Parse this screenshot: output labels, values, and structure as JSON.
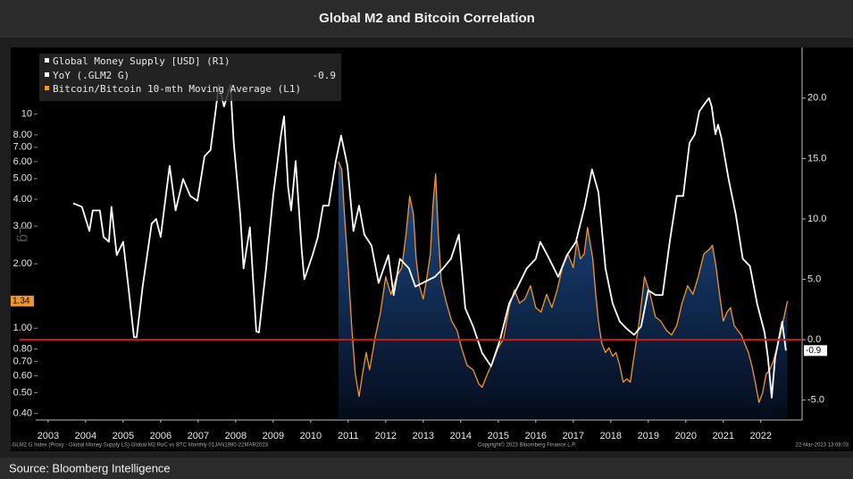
{
  "chart_data": {
    "type": "line",
    "title": "Global M2 and Bitcoin Correlation",
    "y_axis_label": "Lg",
    "xlim": [
      2003.17,
      2023.6
    ],
    "xticks": [
      {
        "value": 2003.5,
        "label": "2003"
      },
      {
        "value": 2004.5,
        "label": "2004"
      },
      {
        "value": 2005.5,
        "label": "2005"
      },
      {
        "value": 2006.5,
        "label": "2006"
      },
      {
        "value": 2007.5,
        "label": "2007"
      },
      {
        "value": 2008.5,
        "label": "2008"
      },
      {
        "value": 2009.5,
        "label": "2009"
      },
      {
        "value": 2010.5,
        "label": "2010"
      },
      {
        "value": 2011.5,
        "label": "2011"
      },
      {
        "value": 2012.5,
        "label": "2012"
      },
      {
        "value": 2013.5,
        "label": "2013"
      },
      {
        "value": 2014.5,
        "label": "2014"
      },
      {
        "value": 2015.5,
        "label": "2015"
      },
      {
        "value": 2016.5,
        "label": "2016"
      },
      {
        "value": 2017.5,
        "label": "2017"
      },
      {
        "value": 2018.5,
        "label": "2018"
      },
      {
        "value": 2019.5,
        "label": "2019"
      },
      {
        "value": 2020.5,
        "label": "2020"
      },
      {
        "value": 2021.5,
        "label": "2021"
      },
      {
        "value": 2022.5,
        "label": "2022"
      }
    ],
    "ylim": [
      0.38,
      20.5
    ],
    "log_scale": true,
    "yticks": [
      10,
      {
        "value": 8,
        "label": "8.00"
      },
      {
        "value": 7,
        "label": "7.00"
      },
      {
        "value": 6,
        "label": "6.00"
      },
      {
        "value": 5,
        "label": "5.00"
      },
      {
        "value": 4,
        "label": "4.00"
      },
      {
        "value": 3,
        "label": "3.00"
      },
      {
        "value": 2,
        "label": "2.00"
      },
      {
        "value": 1,
        "label": "1.00"
      },
      {
        "value": 0.8,
        "label": "0.80"
      },
      {
        "value": 0.7,
        "label": "0.70"
      },
      {
        "value": 0.6,
        "label": "0.60"
      },
      {
        "value": 0.5,
        "label": "0.50"
      },
      {
        "value": 0.4,
        "label": "0.40"
      }
    ],
    "y2lim": [
      -6.5,
      24.2
    ],
    "y2ticks": [
      {
        "value": -5,
        "label": "-5.0"
      },
      {
        "value": 0,
        "label": "0.0"
      },
      {
        "value": 5,
        "label": "5.0"
      },
      {
        "value": 10,
        "label": "10.0"
      },
      {
        "value": 15,
        "label": "15.0"
      },
      {
        "value": 20,
        "label": "20.0"
      }
    ],
    "reference_line": {
      "axis": "y2",
      "value": 0,
      "color": "#d01616"
    },
    "series": [
      {
        "name": "Global Money Supply [USD] (R1)",
        "legend_line2": "YoY (.GLM2 G)",
        "last_value_label": "-0.9",
        "color": "#ffffff",
        "axis": "y2",
        "x": [
          2004.17,
          2004.4,
          2004.6,
          2004.69,
          2004.88,
          2004.98,
          2005.12,
          2005.19,
          2005.33,
          2005.5,
          2005.64,
          2005.79,
          2005.86,
          2006.02,
          2006.26,
          2006.38,
          2006.5,
          2006.74,
          2006.9,
          2007.1,
          2007.29,
          2007.48,
          2007.67,
          2007.83,
          2007.98,
          2008.05,
          2008.19,
          2008.36,
          2008.45,
          2008.62,
          2008.71,
          2008.88,
          2009.05,
          2009.12,
          2009.31,
          2009.5,
          2009.71,
          2009.79,
          2009.9,
          2009.98,
          2010.1,
          2010.26,
          2010.33,
          2010.55,
          2010.69,
          2010.83,
          2010.98,
          2011.17,
          2011.31,
          2011.48,
          2011.64,
          2011.79,
          2011.93,
          2012.12,
          2012.31,
          2012.57,
          2012.71,
          2012.88,
          2013.12,
          2013.29,
          2013.55,
          2013.81,
          2014.0,
          2014.24,
          2014.45,
          2014.62,
          2014.83,
          2015.07,
          2015.31,
          2015.55,
          2015.79,
          2016.02,
          2016.26,
          2016.5,
          2016.62,
          2016.86,
          2017.1,
          2017.33,
          2017.57,
          2017.81,
          2018.0,
          2018.17,
          2018.36,
          2018.55,
          2018.74,
          2018.93,
          2019.12,
          2019.31,
          2019.5,
          2019.69,
          2019.88,
          2020.07,
          2020.26,
          2020.43,
          2020.6,
          2020.74,
          2020.86,
          2021.02,
          2021.12,
          2021.19,
          2021.29,
          2021.36,
          2021.45,
          2021.64,
          2021.83,
          2022.02,
          2022.21,
          2022.4,
          2022.6,
          2022.69,
          2022.79,
          2022.88,
          2022.98,
          2023.07,
          2023.17
        ],
        "values": [
          11.3,
          11.0,
          9.0,
          10.7,
          10.7,
          8.5,
          8.1,
          11.0,
          7.0,
          8.1,
          4.4,
          0.2,
          0.2,
          4.4,
          9.6,
          10.0,
          8.5,
          14.4,
          10.7,
          13.3,
          11.9,
          11.5,
          15.2,
          15.7,
          19.3,
          21.1,
          19.3,
          21.1,
          16.3,
          10.4,
          5.9,
          9.3,
          0.7,
          0.6,
          5.9,
          11.9,
          17.0,
          18.5,
          12.6,
          10.7,
          14.8,
          7.4,
          5.0,
          7.0,
          8.5,
          11.1,
          11.1,
          14.8,
          16.9,
          14.4,
          9.0,
          11.1,
          8.7,
          7.8,
          4.7,
          7.0,
          3.7,
          6.7,
          5.9,
          4.4,
          4.8,
          5.2,
          5.8,
          6.7,
          8.7,
          2.6,
          1.1,
          -1.1,
          -2.2,
          0.0,
          3.0,
          4.4,
          5.9,
          6.7,
          8.1,
          6.7,
          5.2,
          7.0,
          8.1,
          11.1,
          14.1,
          12.2,
          5.9,
          3.0,
          1.5,
          0.9,
          0.4,
          1.1,
          4.1,
          3.7,
          3.7,
          8.1,
          11.9,
          11.9,
          16.3,
          17.0,
          18.9,
          19.6,
          20.0,
          19.3,
          17.0,
          17.8,
          16.7,
          13.3,
          10.4,
          6.7,
          6.1,
          3.0,
          0.6,
          -1.5,
          -4.8,
          -1.5,
          0.1,
          1.5,
          -0.9
        ]
      },
      {
        "name": "Bitcoin/Bitcoin 10-mth Moving Average (L1)",
        "last_value_label": "1.34",
        "color": "#f0962a",
        "axis": "y",
        "fill": true,
        "x": [
          2011.24,
          2011.33,
          2011.4,
          2011.5,
          2011.6,
          2011.69,
          2011.79,
          2011.88,
          2011.98,
          2012.07,
          2012.21,
          2012.36,
          2012.5,
          2012.64,
          2012.79,
          2012.93,
          2013.05,
          2013.14,
          2013.24,
          2013.31,
          2013.4,
          2013.5,
          2013.6,
          2013.69,
          2013.76,
          2013.83,
          2013.9,
          2013.98,
          2014.12,
          2014.26,
          2014.4,
          2014.52,
          2014.67,
          2014.83,
          2014.98,
          2015.07,
          2015.21,
          2015.36,
          2015.5,
          2015.64,
          2015.79,
          2015.93,
          2016.07,
          2016.21,
          2016.36,
          2016.5,
          2016.64,
          2016.79,
          2016.93,
          2017.07,
          2017.21,
          2017.36,
          2017.5,
          2017.6,
          2017.69,
          2017.79,
          2017.88,
          2018.02,
          2018.1,
          2018.17,
          2018.26,
          2018.36,
          2018.45,
          2018.55,
          2018.64,
          2018.74,
          2018.83,
          2018.93,
          2019.02,
          2019.12,
          2019.26,
          2019.4,
          2019.55,
          2019.69,
          2019.83,
          2019.98,
          2020.12,
          2020.26,
          2020.4,
          2020.55,
          2020.69,
          2020.83,
          2020.98,
          2021.12,
          2021.21,
          2021.31,
          2021.4,
          2021.5,
          2021.6,
          2021.69,
          2021.79,
          2021.88,
          2021.98,
          2022.07,
          2022.17,
          2022.26,
          2022.36,
          2022.45,
          2022.55,
          2022.64,
          2022.74,
          2022.83,
          2022.93,
          2023.02,
          2023.12,
          2023.21
        ],
        "values": [
          6.0,
          5.52,
          3.41,
          1.92,
          0.98,
          0.61,
          0.48,
          0.61,
          0.77,
          0.64,
          0.89,
          1.19,
          1.74,
          1.44,
          1.74,
          1.92,
          2.82,
          4.14,
          3.41,
          2.11,
          1.58,
          1.37,
          1.74,
          2.22,
          3.76,
          5.26,
          2.82,
          1.66,
          1.31,
          1.08,
          0.98,
          0.81,
          0.67,
          0.64,
          0.55,
          0.53,
          0.61,
          0.7,
          0.81,
          0.89,
          1.25,
          1.51,
          1.31,
          1.37,
          1.58,
          1.25,
          1.19,
          1.44,
          1.25,
          1.51,
          1.92,
          2.22,
          1.92,
          2.56,
          2.11,
          2.22,
          2.96,
          2.11,
          1.44,
          1.08,
          0.85,
          0.77,
          0.81,
          0.74,
          0.77,
          0.67,
          0.56,
          0.58,
          0.56,
          0.74,
          1.08,
          1.74,
          1.44,
          1.13,
          1.08,
          0.98,
          0.93,
          1.03,
          1.31,
          1.58,
          1.44,
          1.74,
          2.22,
          2.33,
          2.44,
          1.92,
          1.44,
          1.08,
          1.19,
          1.25,
          1.03,
          0.98,
          0.93,
          0.85,
          0.77,
          0.67,
          0.55,
          0.45,
          0.5,
          0.61,
          0.64,
          0.7,
          0.81,
          0.93,
          1.13,
          1.34
        ]
      }
    ],
    "footer_left": ".GLM2 G Index (Proxy - Global Money Supply LS) Global M2 RoC vs BTC  Monthly 01JAN1980-22MAR2023",
    "footer_center": "Copyright© 2023 Bloomberg Finance L.P.",
    "footer_right": "22-Mar-2023 13:08:03",
    "source": "Source: Bloomberg Intelligence"
  }
}
